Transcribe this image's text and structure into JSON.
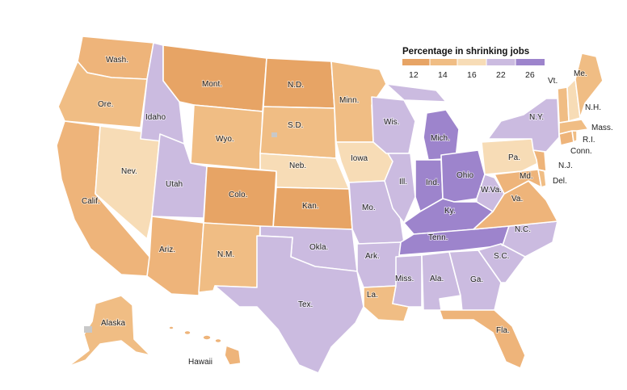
{
  "legend": {
    "title": "Percentage in shrinking jobs",
    "ticks": [
      "12",
      "14",
      "16",
      "22",
      "26"
    ],
    "colors": [
      "#e7a465",
      "#f0bd84",
      "#f7dcb6",
      "#cbbbe0",
      "#9d84cc"
    ]
  },
  "palette": {
    "state_border": "#ffffff",
    "county_line": "#ffffff",
    "no_data": "#c8c8c8"
  },
  "states": [
    {
      "id": "wa",
      "label": "Wash."
    },
    {
      "id": "or",
      "label": "Ore."
    },
    {
      "id": "ca",
      "label": "Calif."
    },
    {
      "id": "id",
      "label": "Idaho"
    },
    {
      "id": "nv",
      "label": "Nev."
    },
    {
      "id": "mt",
      "label": "Mont."
    },
    {
      "id": "wy",
      "label": "Wyo."
    },
    {
      "id": "ut",
      "label": "Utah"
    },
    {
      "id": "co",
      "label": "Colo."
    },
    {
      "id": "az",
      "label": "Ariz."
    },
    {
      "id": "nm",
      "label": "N.M."
    },
    {
      "id": "nd",
      "label": "N.D."
    },
    {
      "id": "sd",
      "label": "S.D."
    },
    {
      "id": "ne",
      "label": "Neb."
    },
    {
      "id": "ks",
      "label": "Kan."
    },
    {
      "id": "ok",
      "label": "Okla."
    },
    {
      "id": "tx",
      "label": "Tex."
    },
    {
      "id": "mn",
      "label": "Minn."
    },
    {
      "id": "ia",
      "label": "Iowa"
    },
    {
      "id": "mo",
      "label": "Mo."
    },
    {
      "id": "ar",
      "label": "Ark."
    },
    {
      "id": "la",
      "label": "La."
    },
    {
      "id": "wi",
      "label": "Wis."
    },
    {
      "id": "il",
      "label": "Ill."
    },
    {
      "id": "mi",
      "label": "Mich."
    },
    {
      "id": "in",
      "label": "Ind."
    },
    {
      "id": "oh",
      "label": "Ohio"
    },
    {
      "id": "ky",
      "label": "Ky."
    },
    {
      "id": "tn",
      "label": "Tenn."
    },
    {
      "id": "ms",
      "label": "Miss."
    },
    {
      "id": "al",
      "label": "Ala."
    },
    {
      "id": "ga",
      "label": "Ga."
    },
    {
      "id": "fl",
      "label": "Fla."
    },
    {
      "id": "sc",
      "label": "S.C."
    },
    {
      "id": "nc",
      "label": "N.C."
    },
    {
      "id": "va",
      "label": "Va."
    },
    {
      "id": "wv",
      "label": "W.Va."
    },
    {
      "id": "pa",
      "label": "Pa."
    },
    {
      "id": "ny",
      "label": "N.Y."
    },
    {
      "id": "md",
      "label": "Md."
    },
    {
      "id": "de",
      "label": "Del."
    },
    {
      "id": "nj",
      "label": "N.J."
    },
    {
      "id": "ct",
      "label": "Conn."
    },
    {
      "id": "ri",
      "label": "R.I."
    },
    {
      "id": "ma",
      "label": "Mass."
    },
    {
      "id": "vt",
      "label": "Vt."
    },
    {
      "id": "nh",
      "label": "N.H."
    },
    {
      "id": "me",
      "label": "Me."
    },
    {
      "id": "ak",
      "label": "Alaska"
    },
    {
      "id": "hi",
      "label": "Hawaii"
    }
  ]
}
